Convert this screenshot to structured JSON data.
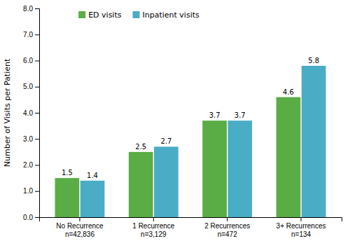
{
  "chart_data": {
    "type": "bar",
    "categories": [
      "No Recurrence\nn=42,836",
      "1 Recurrence\nn=3,129",
      "2 Recurrences\nn=472",
      "3+ Recurrences\nn=134"
    ],
    "series": [
      {
        "name": "ED visits",
        "color": "#5aad45",
        "values": [
          1.5,
          2.5,
          3.7,
          4.6
        ]
      },
      {
        "name": "Inpatient visits",
        "color": "#4bacc6",
        "values": [
          1.4,
          2.7,
          3.7,
          5.8
        ]
      }
    ],
    "ylabel": "Number of Visits per Patient",
    "ylim": [
      0.0,
      8.0
    ],
    "yticks": [
      {
        "value": 0,
        "label": "0.0"
      },
      {
        "value": 1,
        "label": "1.0"
      },
      {
        "value": 2,
        "label": "2.0"
      },
      {
        "value": 3,
        "label": "3.0"
      },
      {
        "value": 4,
        "label": "4.0"
      },
      {
        "value": 5,
        "label": "5.0"
      },
      {
        "value": 6,
        "label": "6.0"
      },
      {
        "value": 7,
        "label": "7.0"
      },
      {
        "value": 8,
        "label": "8.0"
      }
    ],
    "data_labels": true,
    "grid": false,
    "legend": "upper left"
  }
}
